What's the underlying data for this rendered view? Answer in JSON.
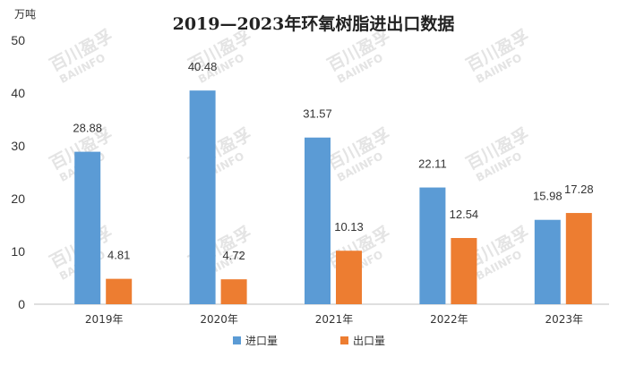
{
  "watermark": {
    "cn": "百川盈孚",
    "en": "BAIINFO"
  },
  "chart_data": {
    "type": "bar",
    "title": "2019—2023年环氧树脂进出口数据",
    "yunit": "万吨",
    "categories": [
      "2019年",
      "2020年",
      "2021年",
      "2022年",
      "2023年"
    ],
    "series": [
      {
        "name": "进口量",
        "color": "#5b9bd5",
        "values": [
          28.88,
          40.48,
          31.57,
          22.11,
          15.98
        ]
      },
      {
        "name": "出口量",
        "color": "#ed7d31",
        "values": [
          4.81,
          4.72,
          10.13,
          12.54,
          17.28
        ]
      }
    ],
    "ylim": [
      0,
      50
    ],
    "yticks": [
      0,
      10,
      20,
      30,
      40,
      50
    ],
    "grid": false,
    "legend": "bottom-center"
  }
}
